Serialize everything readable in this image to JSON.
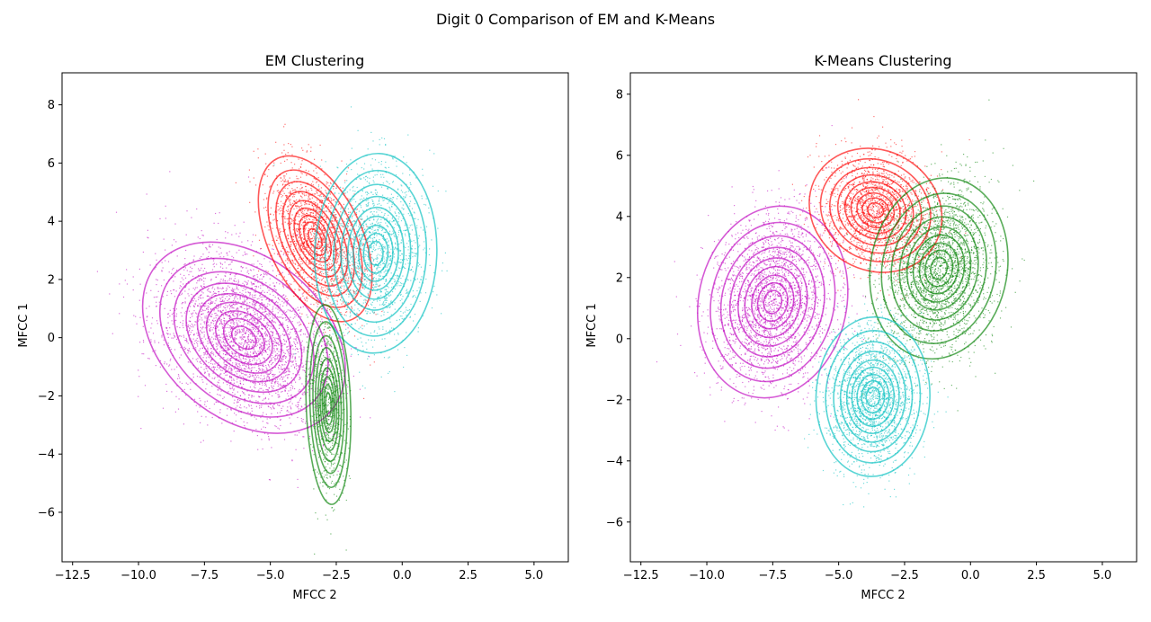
{
  "figure": {
    "suptitle": "Digit 0 Comparison of EM and K-Means"
  },
  "colors": {
    "magenta": "#bf00bf",
    "red": "#ff0000",
    "cyan": "#00bfbf",
    "green": "#008000"
  },
  "chart_data": [
    {
      "type": "scatter",
      "title": "EM Clustering",
      "xlabel": "MFCC 2",
      "ylabel": "MFCC 1",
      "xlim": [
        -12.9,
        6.3
      ],
      "ylim": [
        -7.7,
        9.1
      ],
      "xticks": [
        -12.5,
        -10.0,
        -7.5,
        -5.0,
        -2.5,
        0.0,
        2.5,
        5.0
      ],
      "xtick_labels": [
        "−12.5",
        "−10.0",
        "−7.5",
        "−5.0",
        "−2.5",
        "0.0",
        "2.5",
        "5.0"
      ],
      "yticks": [
        -6,
        -4,
        -2,
        0,
        2,
        4,
        6,
        8
      ],
      "ytick_labels": [
        "−6",
        "−4",
        "−2",
        "0",
        "2",
        "4",
        "6",
        "8"
      ],
      "series": [
        {
          "color": "magenta",
          "center": [
            -6.0,
            0.0
          ],
          "semi_axes": [
            4.1,
            2.9
          ],
          "angle_deg": -40,
          "points": 3200
        },
        {
          "color": "red",
          "center": [
            -3.3,
            3.4
          ],
          "semi_axes": [
            3.2,
            1.7
          ],
          "angle_deg": -65,
          "points": 1700
        },
        {
          "color": "cyan",
          "center": [
            -1.0,
            2.9
          ],
          "semi_axes": [
            3.6,
            2.2
          ],
          "angle_deg": 88,
          "points": 1500
        },
        {
          "color": "green",
          "center": [
            -2.8,
            -2.3
          ],
          "semi_axes": [
            3.6,
            0.8
          ],
          "angle_deg": 92,
          "points": 700
        }
      ]
    },
    {
      "type": "scatter",
      "title": "K-Means Clustering",
      "xlabel": "MFCC 2",
      "ylabel": "MFCC 1",
      "xlim": [
        -12.9,
        6.3
      ],
      "ylim": [
        -7.3,
        8.7
      ],
      "xticks": [
        -12.5,
        -10.0,
        -7.5,
        -5.0,
        -2.5,
        0.0,
        2.5,
        5.0
      ],
      "xtick_labels": [
        "−12.5",
        "−10.0",
        "−7.5",
        "−5.0",
        "−2.5",
        "0.0",
        "2.5",
        "5.0"
      ],
      "yticks": [
        -6,
        -4,
        -2,
        0,
        2,
        4,
        6,
        8
      ],
      "ytick_labels": [
        "−6",
        "−4",
        "−2",
        "0",
        "2",
        "4",
        "6",
        "8"
      ],
      "series": [
        {
          "color": "magenta",
          "center": [
            -7.5,
            1.2
          ],
          "semi_axes": [
            3.4,
            2.6
          ],
          "angle_deg": 78,
          "points": 2400
        },
        {
          "color": "red",
          "center": [
            -3.6,
            4.2
          ],
          "semi_axes": [
            2.4,
            2.1
          ],
          "angle_deg": -30,
          "points": 1700
        },
        {
          "color": "green",
          "center": [
            -1.2,
            2.3
          ],
          "semi_axes": [
            3.2,
            2.4
          ],
          "angle_deg": 80,
          "points": 2600
        },
        {
          "color": "cyan",
          "center": [
            -3.7,
            -1.9
          ],
          "semi_axes": [
            2.8,
            2.0
          ],
          "angle_deg": 88,
          "points": 1900
        }
      ]
    }
  ]
}
